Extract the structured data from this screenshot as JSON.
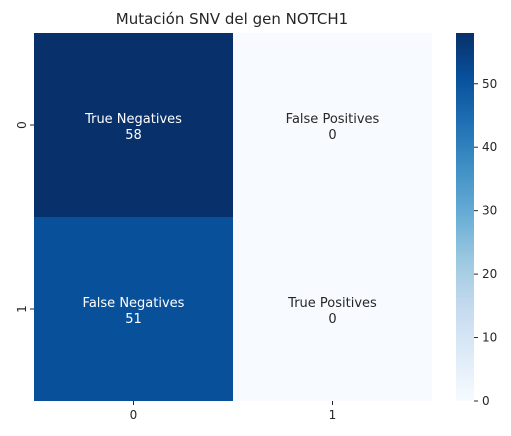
{
  "chart_data": {
    "type": "heatmap",
    "title": "Mutación SNV del gen NOTCH1",
    "xlabel": "",
    "ylabel": "",
    "x_tick_labels": [
      "0",
      "1"
    ],
    "y_tick_labels": [
      "0",
      "1"
    ],
    "cells": [
      [
        {
          "row": 0,
          "col": 0,
          "label": "True Negatives",
          "value": 58
        },
        {
          "row": 0,
          "col": 1,
          "label": "False Positives",
          "value": 0
        }
      ],
      [
        {
          "row": 1,
          "col": 0,
          "label": "False Negatives",
          "value": 51
        },
        {
          "row": 1,
          "col": 1,
          "label": "True Positives",
          "value": 0
        }
      ]
    ],
    "colormap": "Blues",
    "colorbar": {
      "min": 0,
      "max": 58,
      "ticks": [
        "0",
        "10",
        "20",
        "30",
        "40",
        "50"
      ],
      "placement": "right"
    }
  }
}
